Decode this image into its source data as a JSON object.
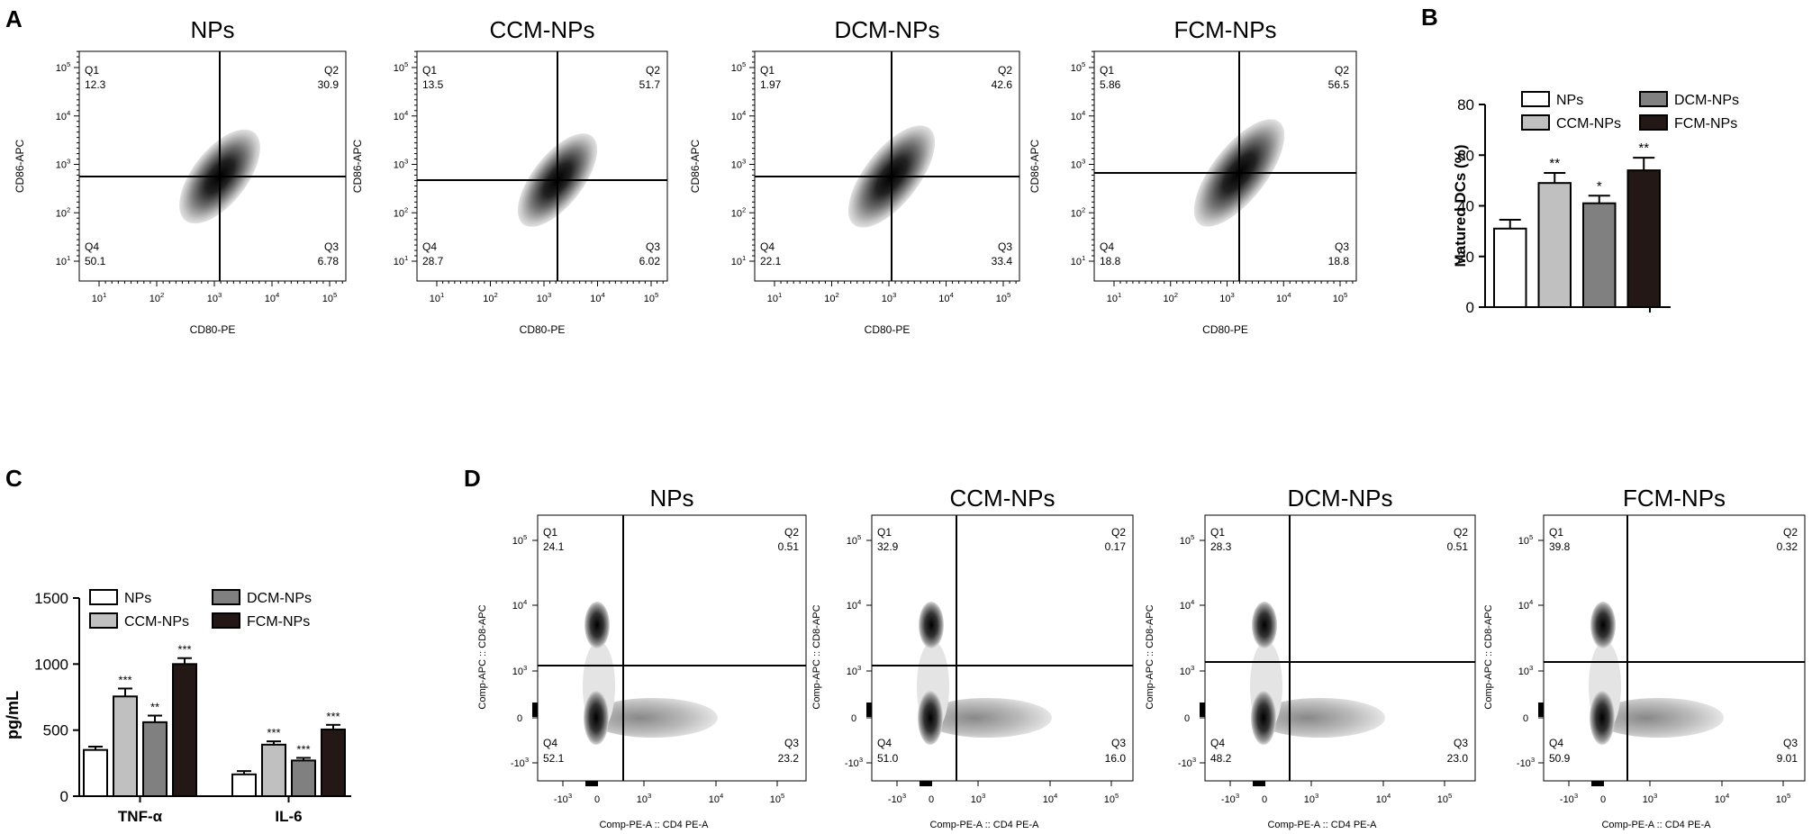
{
  "panel_labels": {
    "a": "A",
    "b": "B",
    "c": "C",
    "d": "D"
  },
  "colors": {
    "NPs": "#ffffff",
    "CCM-NPs": "#c0c0c0",
    "DCM-NPs": "#808080",
    "FCM-NPs": "#231816"
  },
  "chart_data": [
    {
      "panel": "A",
      "type": "scatter",
      "description_kind": "flow-cytometry density plots",
      "xlabel": "CD80-PE",
      "ylabel": "CD86-APC",
      "x_scale": "log",
      "y_scale": "log",
      "x_ticks": [
        "10",
        "10",
        "10",
        "10",
        "10"
      ],
      "x_tick_exps": [
        "1",
        "2",
        "3",
        "4",
        "5"
      ],
      "y_ticks": [
        "10",
        "10",
        "10",
        "10",
        "10"
      ],
      "y_tick_exps": [
        "1",
        "2",
        "3",
        "4",
        "5"
      ],
      "quadrant_names": [
        "Q1",
        "Q2",
        "Q3",
        "Q4"
      ],
      "plots": [
        {
          "title": "NPs",
          "Q1": "12.3",
          "Q2": "30.9",
          "Q3": "6.78",
          "Q4": "50.1"
        },
        {
          "title": "CCM-NPs",
          "Q1": "13.5",
          "Q2": "51.7",
          "Q3": "6.02",
          "Q4": "28.7"
        },
        {
          "title": "DCM-NPs",
          "Q1": "1.97",
          "Q2": "42.6",
          "Q3": "33.4",
          "Q4": "22.1"
        },
        {
          "title": "FCM-NPs",
          "Q1": "5.86",
          "Q2": "56.5",
          "Q3": "18.8",
          "Q4": "18.8"
        }
      ]
    },
    {
      "panel": "B",
      "type": "bar",
      "categories": [
        "NPs",
        "CCM-NPs",
        "DCM-NPs",
        "FCM-NPs"
      ],
      "values": [
        31,
        49,
        41,
        54
      ],
      "errors": [
        3.5,
        4,
        3,
        5
      ],
      "significance": [
        "",
        "**",
        "*",
        "**"
      ],
      "ylabel": "Matured DCs (%)",
      "ylim": [
        0,
        80
      ],
      "yticks": [
        "0",
        "20",
        "40",
        "60",
        "80"
      ],
      "legend": [
        "NPs",
        "CCM-NPs",
        "DCM-NPs",
        "FCM-NPs"
      ]
    },
    {
      "panel": "C",
      "type": "bar",
      "categories": [
        "TNF-α",
        "IL-6"
      ],
      "series": [
        {
          "name": "NPs",
          "values": [
            350,
            165
          ],
          "errors": [
            25,
            25
          ],
          "significance": [
            "",
            ""
          ]
        },
        {
          "name": "CCM-NPs",
          "values": [
            755,
            390
          ],
          "errors": [
            60,
            25
          ],
          "significance": [
            "***",
            "***"
          ]
        },
        {
          "name": "DCM-NPs",
          "values": [
            560,
            270
          ],
          "errors": [
            50,
            20
          ],
          "significance": [
            "**",
            "***"
          ]
        },
        {
          "name": "FCM-NPs",
          "values": [
            1000,
            505
          ],
          "errors": [
            45,
            35
          ],
          "significance": [
            "***",
            "***"
          ]
        }
      ],
      "ylabel": "pg/mL",
      "ylim": [
        0,
        1500
      ],
      "yticks": [
        "0",
        "500",
        "1000",
        "1500"
      ]
    },
    {
      "panel": "D",
      "type": "scatter",
      "description_kind": "flow-cytometry density plots",
      "xlabel": "Comp-PE-A :: CD4 PE-A",
      "ylabel": "Comp-APC :: CD8-APC",
      "x_ticks": [
        "-10",
        "0",
        "10",
        "10",
        "10"
      ],
      "x_tick_exps": [
        "3",
        "",
        "3",
        "4",
        "5"
      ],
      "y_ticks": [
        "-10",
        "0",
        "10",
        "10",
        "10"
      ],
      "y_tick_exps": [
        "3",
        "",
        "3",
        "4",
        "5"
      ],
      "quadrant_names": [
        "Q1",
        "Q2",
        "Q3",
        "Q4"
      ],
      "plots": [
        {
          "title": "NPs",
          "Q1": "24.1",
          "Q2": "0.51",
          "Q3": "23.2",
          "Q4": "52.1"
        },
        {
          "title": "CCM-NPs",
          "Q1": "32.9",
          "Q2": "0.17",
          "Q3": "16.0",
          "Q4": "51.0"
        },
        {
          "title": "DCM-NPs",
          "Q1": "28.3",
          "Q2": "0.51",
          "Q3": "23.0",
          "Q4": "48.2"
        },
        {
          "title": "FCM-NPs",
          "Q1": "39.8",
          "Q2": "0.32",
          "Q3": "9.01",
          "Q4": "50.9"
        }
      ]
    }
  ]
}
